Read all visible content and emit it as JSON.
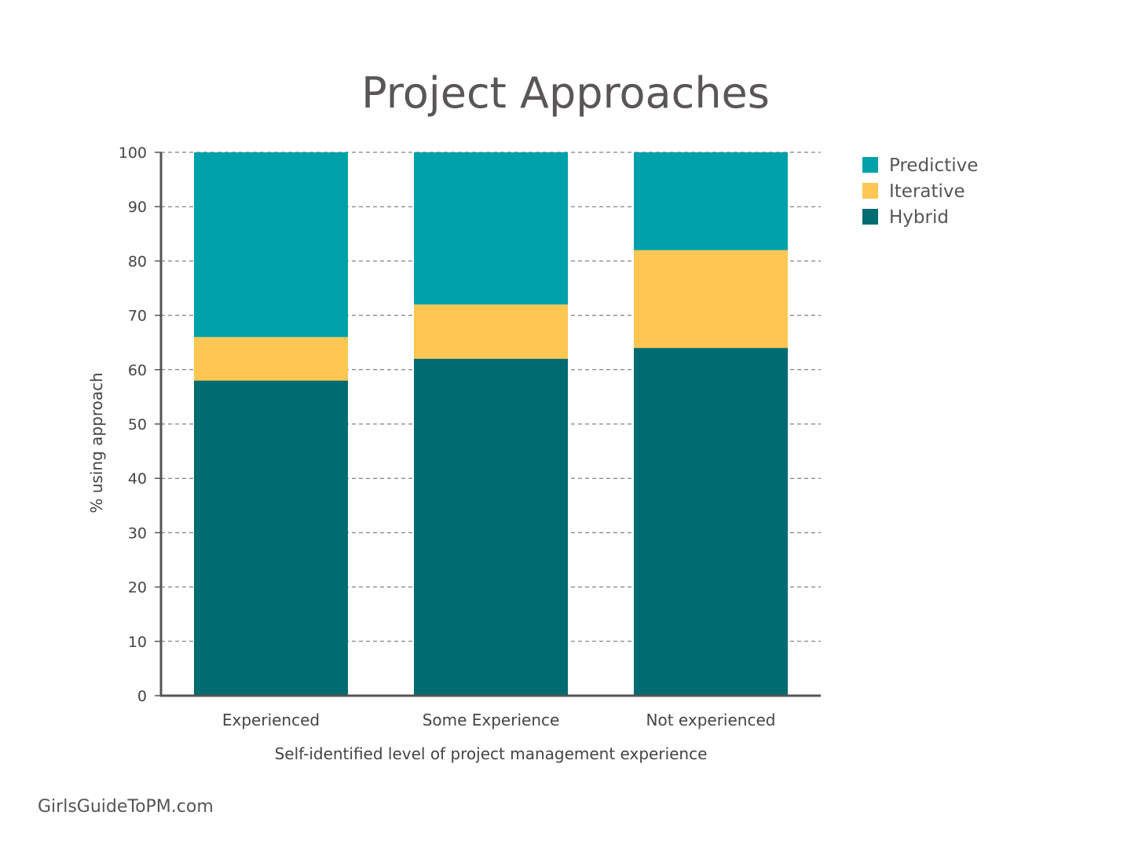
{
  "chart_data": {
    "type": "bar",
    "stacked": true,
    "title": "Project Approaches",
    "xlabel": "Self-identified level of project management experience",
    "ylabel": "% using approach",
    "categories": [
      "Experienced",
      "Some Experience",
      "Not experienced"
    ],
    "series": [
      {
        "name": "Hybrid",
        "values": [
          58,
          62,
          64
        ],
        "color": "#006b70"
      },
      {
        "name": "Iterative",
        "values": [
          8,
          10,
          18
        ],
        "color": "#fec652"
      },
      {
        "name": "Predictive",
        "values": [
          34,
          28,
          18
        ],
        "color": "#00a1aa"
      }
    ],
    "legend_order": [
      "Predictive",
      "Iterative",
      "Hybrid"
    ],
    "ylim": [
      0,
      100
    ],
    "yticks": [
      0,
      10,
      20,
      30,
      40,
      50,
      60,
      70,
      80,
      90,
      100
    ],
    "grid": true,
    "legend_position": "top-right"
  },
  "footer": {
    "credit": "GirlsGuideToPM.com"
  }
}
